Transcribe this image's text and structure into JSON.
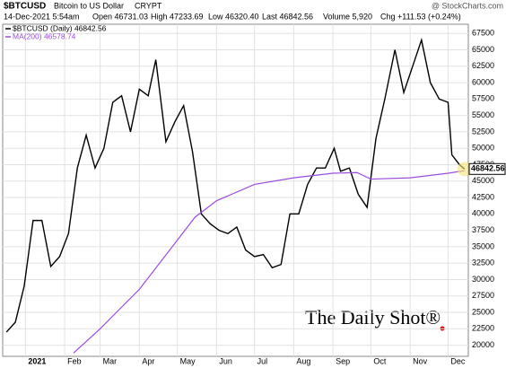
{
  "header": {
    "symbol": "$BTCUSD",
    "description": "Bitcoin to US Dollar",
    "exchange": "CRYPT",
    "source": "@ StockCharts.com",
    "date": "14-Dec-2021 5:54am",
    "open": "Open 46731.03",
    "high": "High 47233.69",
    "low": "Low 46320.40",
    "last": "Last 46842.56",
    "volume": "Volume 5,920",
    "change": "Chg +111.53 (+0.24%)"
  },
  "watermark": "The Daily Shot®",
  "chart_data": {
    "type": "line",
    "series": [
      {
        "name": "$BTCUSD (Daily) 46842.56",
        "color": "#000000",
        "x": [
          "2020-12-17",
          "2020-12-24",
          "2020-12-31",
          "2021-01-07",
          "2021-01-14",
          "2021-01-21",
          "2021-01-28",
          "2021-02-04",
          "2021-02-11",
          "2021-02-18",
          "2021-02-25",
          "2021-03-04",
          "2021-03-11",
          "2021-03-18",
          "2021-03-25",
          "2021-04-01",
          "2021-04-08",
          "2021-04-14",
          "2021-04-22",
          "2021-04-29",
          "2021-05-06",
          "2021-05-13",
          "2021-05-20",
          "2021-05-27",
          "2021-06-03",
          "2021-06-10",
          "2021-06-17",
          "2021-06-24",
          "2021-07-01",
          "2021-07-08",
          "2021-07-15",
          "2021-07-22",
          "2021-07-29",
          "2021-08-05",
          "2021-08-12",
          "2021-08-19",
          "2021-08-26",
          "2021-09-02",
          "2021-09-07",
          "2021-09-14",
          "2021-09-21",
          "2021-09-28",
          "2021-10-05",
          "2021-10-12",
          "2021-10-20",
          "2021-10-27",
          "2021-11-03",
          "2021-11-10",
          "2021-11-17",
          "2021-11-24",
          "2021-12-01",
          "2021-12-04",
          "2021-12-10",
          "2021-12-14"
        ],
        "values": [
          22000,
          23500,
          29000,
          39000,
          39000,
          32000,
          33500,
          37000,
          47000,
          52000,
          47000,
          50000,
          57000,
          58000,
          52500,
          59000,
          58000,
          63500,
          51000,
          54000,
          56500,
          49500,
          40000,
          38500,
          37500,
          37000,
          38000,
          34500,
          33500,
          33800,
          31800,
          32300,
          40000,
          40000,
          44500,
          47000,
          47000,
          50000,
          46500,
          47000,
          43000,
          41000,
          51500,
          57500,
          65000,
          58500,
          62500,
          66500,
          60000,
          57500,
          57000,
          49000,
          47500,
          46842.56
        ]
      },
      {
        "name": "MA(200) 46578.74",
        "color": "#9b4de0",
        "x": [
          "2021-02-08",
          "2021-03-01",
          "2021-04-01",
          "2021-05-01",
          "2021-05-15",
          "2021-06-01",
          "2021-07-01",
          "2021-08-01",
          "2021-09-01",
          "2021-09-20",
          "2021-10-01",
          "2021-11-01",
          "2021-12-01",
          "2021-12-14"
        ],
        "values": [
          18800,
          22500,
          28500,
          36000,
          39500,
          42000,
          44500,
          45500,
          46200,
          46300,
          45300,
          45500,
          46200,
          46578.74
        ]
      }
    ],
    "xlim": [
      "2020-12-14",
      "2021-12-17"
    ],
    "xticks": [
      {
        "value": "2021-01-01",
        "label": "2021"
      },
      {
        "value": "2021-02-01",
        "label": "Feb"
      },
      {
        "value": "2021-03-01",
        "label": "Mar"
      },
      {
        "value": "2021-04-01",
        "label": "Apr"
      },
      {
        "value": "2021-05-01",
        "label": "May"
      },
      {
        "value": "2021-06-01",
        "label": "Jun"
      },
      {
        "value": "2021-07-01",
        "label": "Jul"
      },
      {
        "value": "2021-08-01",
        "label": "Aug"
      },
      {
        "value": "2021-09-01",
        "label": "Sep"
      },
      {
        "value": "2021-10-01",
        "label": "Oct"
      },
      {
        "value": "2021-11-01",
        "label": "Nov"
      },
      {
        "value": "2021-12-01",
        "label": "Dec"
      }
    ],
    "ylim": [
      18300,
      68900
    ],
    "yticks": [
      20000,
      22500,
      25000,
      27500,
      30000,
      32500,
      35000,
      37500,
      40000,
      42500,
      45000,
      47500,
      50000,
      52500,
      55000,
      57500,
      60000,
      62500,
      65000,
      67500
    ],
    "grid": true
  }
}
